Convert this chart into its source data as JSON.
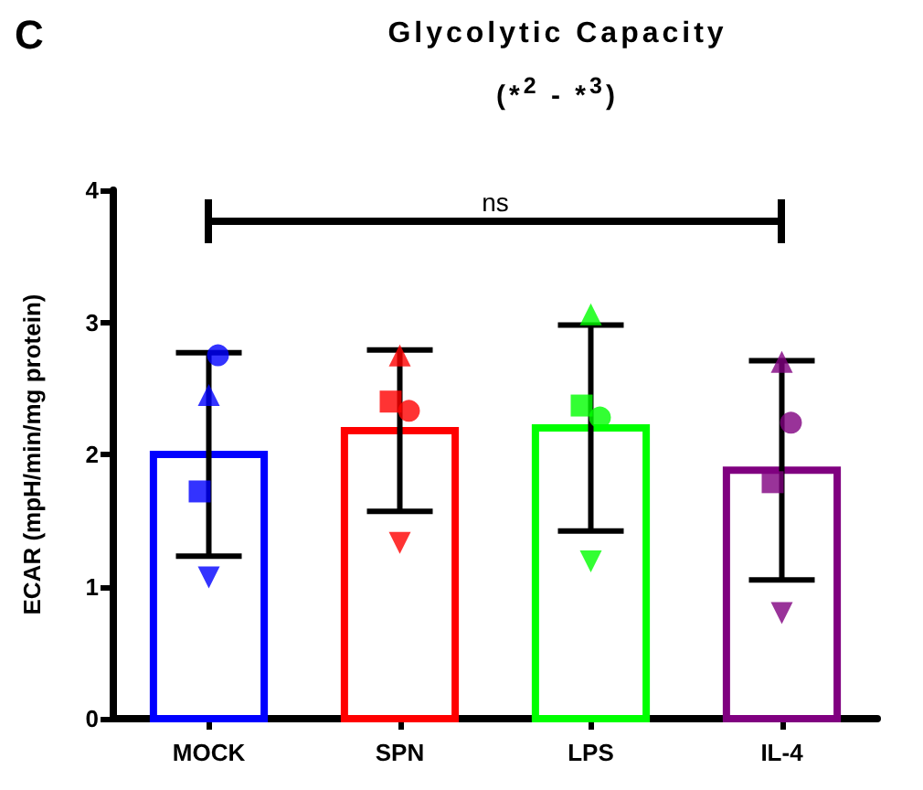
{
  "chart_data": {
    "type": "bar",
    "title": "Glycolytic Capacity",
    "subtitle": "(*$^{2}$ - *$^{3}$)",
    "ylabel": "ECAR (mpH/min/mg protein)",
    "annotations": [
      "C",
      "ns"
    ],
    "categories": [
      "MOCK",
      "SPN",
      "LPS",
      "IL-4"
    ],
    "ylim": [
      0,
      4
    ],
    "yticks": [
      0,
      1,
      2,
      3,
      4
    ],
    "grid": false,
    "series": [
      {
        "values": [
          2.0,
          2.18,
          2.2,
          1.88
        ],
        "colors": [
          "#0000ff",
          "#ff0000",
          "#00ff00",
          "#800080"
        ],
        "errors": [
          0.77,
          0.61,
          0.78,
          0.83
        ]
      },
      {
        "type": "scatter",
        "marker": "circle",
        "x": [
          "MOCK",
          "SPN",
          "LPS",
          "IL-4"
        ],
        "values": [
          2.75,
          2.33,
          2.28,
          2.24
        ],
        "colors": [
          "#0000ff",
          "#ff0000",
          "#00ff00",
          "#800080"
        ]
      },
      {
        "type": "scatter",
        "marker": "square",
        "x": [
          "MOCK",
          "SPN",
          "LPS",
          "IL-4"
        ],
        "values": [
          1.72,
          2.4,
          2.37,
          1.79
        ],
        "colors": [
          "#0000ff",
          "#ff0000",
          "#00ff00",
          "#800080"
        ]
      },
      {
        "type": "scatter",
        "marker": "triangle",
        "x": [
          "MOCK",
          "SPN",
          "LPS",
          "IL-4"
        ],
        "values": [
          2.45,
          2.75,
          3.06,
          2.7
        ],
        "colors": [
          "#0000ff",
          "#ff0000",
          "#00ff00",
          "#800080"
        ]
      },
      {
        "type": "scatter",
        "marker": "triangle-down",
        "x": [
          "MOCK",
          "SPN",
          "LPS",
          "IL-4"
        ],
        "values": [
          1.07,
          1.33,
          1.19,
          0.8
        ],
        "colors": [
          "#0000ff",
          "#ff0000",
          "#00ff00",
          "#800080"
        ]
      }
    ]
  }
}
